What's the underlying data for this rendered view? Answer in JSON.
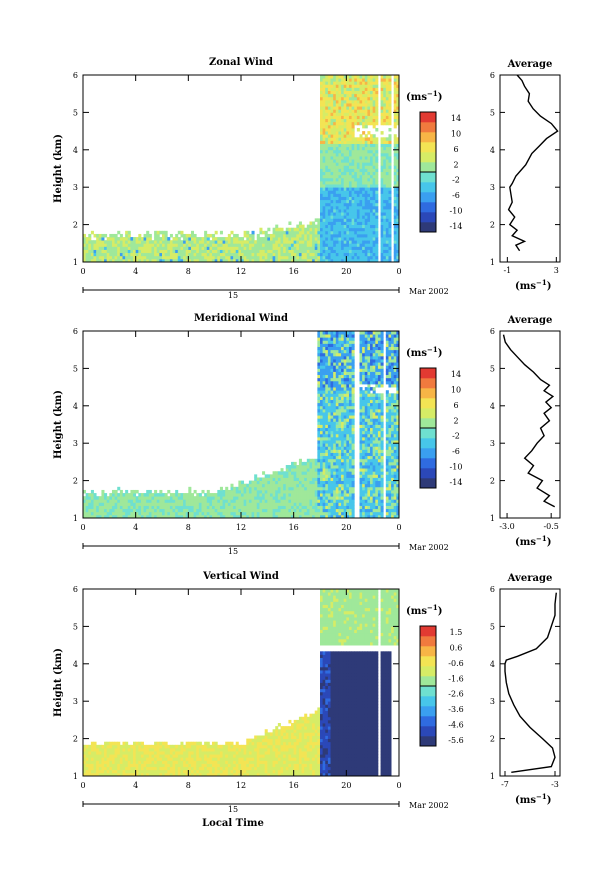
{
  "chart_data": [
    {
      "type": "heatmap",
      "title": "Zonal Wind",
      "ylabel": "Height (km)",
      "xlabel": "",
      "xlim": [
        0,
        24
      ],
      "ylim": [
        1,
        6
      ],
      "xticks": [
        "0",
        "4",
        "8",
        "12",
        "16",
        "20",
        "0"
      ],
      "yticks": [
        "1",
        "2",
        "3",
        "4",
        "5",
        "6"
      ],
      "date_bar": "15",
      "date_label": "Mar 2002",
      "colorbar": {
        "unit": "(ms⁻¹)",
        "ticks": [
          "14",
          "10",
          "6",
          "2",
          "-2",
          "-6",
          "-10",
          "-14"
        ],
        "min": -14,
        "max": 14
      },
      "average": {
        "title": "Average",
        "xlabel": "(ms⁻¹)",
        "xticks": [
          "-1",
          "3"
        ],
        "xlim": [
          -1.6,
          3.3
        ],
        "yticks": [
          "1",
          "2",
          "3",
          "4",
          "5",
          "6"
        ],
        "x": [
          0.0,
          -0.3,
          0.4,
          -0.6,
          -0.2,
          -0.8,
          -0.4,
          -0.9,
          -0.6,
          -0.7,
          -0.8,
          -0.6,
          -0.3,
          0.5,
          1.0,
          1.6,
          2.2,
          3.1,
          2.6,
          1.7,
          1.1,
          0.7,
          0.8,
          0.4,
          0.2,
          -0.2
        ],
        "y": [
          1.3,
          1.45,
          1.55,
          1.7,
          1.85,
          2.0,
          2.2,
          2.4,
          2.6,
          2.8,
          3.0,
          3.1,
          3.3,
          3.6,
          3.9,
          4.1,
          4.3,
          4.5,
          4.7,
          4.9,
          5.1,
          5.3,
          5.5,
          5.7,
          5.85,
          6.0
        ]
      }
    },
    {
      "type": "heatmap",
      "title": "Meridional Wind",
      "ylabel": "Height (km)",
      "xlabel": "",
      "xlim": [
        0,
        24
      ],
      "ylim": [
        1,
        6
      ],
      "xticks": [
        "0",
        "4",
        "8",
        "12",
        "16",
        "20",
        "0"
      ],
      "yticks": [
        "1",
        "2",
        "3",
        "4",
        "5",
        "6"
      ],
      "date_bar": "15",
      "date_label": "Mar 2002",
      "colorbar": {
        "unit": "(ms⁻¹)",
        "ticks": [
          "14",
          "10",
          "6",
          "2",
          "-2",
          "-6",
          "-10",
          "-14"
        ],
        "min": -14,
        "max": 14
      },
      "average": {
        "title": "Average",
        "xlabel": "(ms⁻¹)",
        "xticks": [
          "-3.0",
          "-0.5"
        ],
        "xlim": [
          -3.4,
          0.0
        ],
        "yticks": [
          "1",
          "2",
          "3",
          "4",
          "5",
          "6"
        ],
        "x": [
          -0.3,
          -0.9,
          -0.6,
          -1.3,
          -1.0,
          -1.8,
          -1.5,
          -2.0,
          -1.6,
          -1.3,
          -0.9,
          -1.1,
          -0.6,
          -0.9,
          -0.5,
          -0.8,
          -0.4,
          -0.9,
          -0.6,
          -1.1,
          -1.5,
          -2.0,
          -2.4,
          -2.8,
          -3.1,
          -3.2
        ],
        "y": [
          1.3,
          1.45,
          1.6,
          1.8,
          2.0,
          2.2,
          2.4,
          2.6,
          2.8,
          3.0,
          3.2,
          3.4,
          3.6,
          3.8,
          3.95,
          4.1,
          4.25,
          4.4,
          4.55,
          4.7,
          4.9,
          5.1,
          5.3,
          5.5,
          5.7,
          5.9
        ]
      }
    },
    {
      "type": "heatmap",
      "title": "Vertical Wind",
      "ylabel": "Height (km)",
      "xlabel": "Local Time",
      "xlim": [
        0,
        24
      ],
      "ylim": [
        1,
        6
      ],
      "xticks": [
        "0",
        "4",
        "8",
        "12",
        "16",
        "20",
        "0"
      ],
      "yticks": [
        "1",
        "2",
        "3",
        "4",
        "5",
        "6"
      ],
      "date_bar": "15",
      "date_label": "Mar 2002",
      "colorbar": {
        "unit": "(ms⁻¹)",
        "ticks": [
          "1.5",
          "0.6",
          "-0.6",
          "-1.6",
          "-2.6",
          "-3.6",
          "-4.6",
          "-5.6"
        ],
        "min": -5.6,
        "max": 1.5
      },
      "average": {
        "title": "Average",
        "xlabel": "(ms⁻¹)",
        "xticks": [
          "-7",
          "-3"
        ],
        "xlim": [
          -7.4,
          -2.6
        ],
        "yticks": [
          "1",
          "2",
          "3",
          "4",
          "5",
          "6"
        ],
        "x": [
          -6.5,
          -3.3,
          -3.0,
          -3.2,
          -4.0,
          -5.0,
          -5.8,
          -6.3,
          -6.7,
          -6.9,
          -7.0,
          -7.0,
          -6.9,
          -6.0,
          -4.5,
          -3.6,
          -3.3,
          -3.0,
          -3.0,
          -2.9
        ],
        "y": [
          1.1,
          1.25,
          1.5,
          1.75,
          2.0,
          2.3,
          2.6,
          2.9,
          3.2,
          3.5,
          3.8,
          4.0,
          4.1,
          4.2,
          4.4,
          4.7,
          5.0,
          5.3,
          5.6,
          5.9
        ]
      }
    }
  ]
}
